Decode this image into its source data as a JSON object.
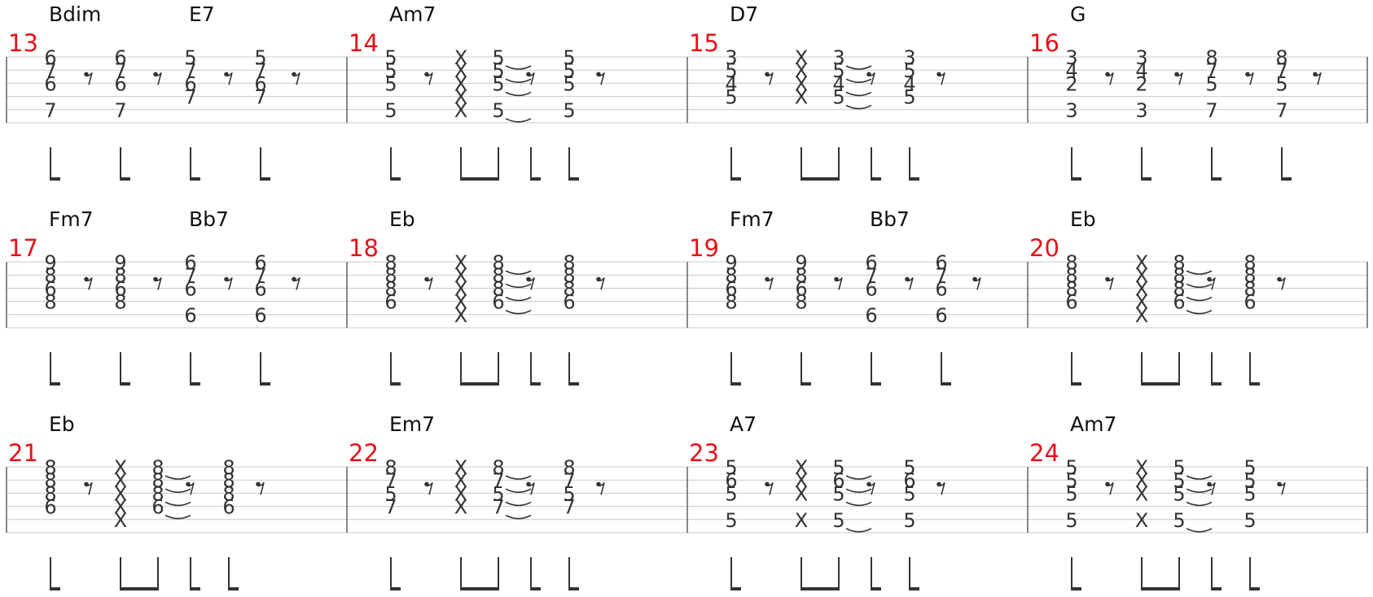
{
  "colors": {
    "measure_number": "#e8101a",
    "staff_line": "#c8c8c8",
    "ink": "#333333"
  },
  "systems": [
    {
      "measures": [
        {
          "number": "13",
          "chords": [
            {
              "name": "Bdim",
              "beat": 1
            },
            {
              "name": "E7",
              "beat": 5
            }
          ],
          "beats": [
            {
              "frets": [
                "6",
                "7",
                "6",
                "",
                "7",
                ""
              ]
            },
            {
              "rest": true
            },
            {
              "frets": [
                "6",
                "7",
                "6",
                "",
                "7",
                ""
              ]
            },
            {
              "rest": true
            },
            {
              "frets": [
                "5",
                "7",
                "6",
                "7",
                "",
                ""
              ]
            },
            {
              "rest": true
            },
            {
              "frets": [
                "5",
                "7",
                "6",
                "7",
                "",
                ""
              ]
            },
            {
              "rest": true
            }
          ]
        },
        {
          "number": "14",
          "chords": [
            {
              "name": "Am7",
              "beat": 1
            }
          ],
          "beats": [
            {
              "frets": [
                "5",
                "5",
                "5",
                "",
                "5",
                ""
              ]
            },
            {
              "rest": true
            },
            {
              "frets": [
                "X",
                "X",
                "X",
                "X",
                "X",
                ""
              ],
              "beam": true
            },
            {
              "frets": [
                "5",
                "5",
                "5",
                "",
                "5",
                ""
              ],
              "beam": true,
              "tie": true
            },
            {
              "ties": [
                0,
                1,
                2,
                4
              ]
            },
            {
              "rest": true
            },
            {
              "frets": [
                "5",
                "5",
                "5",
                "",
                "5",
                ""
              ]
            },
            {
              "rest": true
            }
          ]
        },
        {
          "number": "15",
          "chords": [
            {
              "name": "D7",
              "beat": 1
            }
          ],
          "beats": [
            {
              "frets": [
                "3",
                "5",
                "4",
                "5",
                "",
                ""
              ]
            },
            {
              "rest": true
            },
            {
              "frets": [
                "X",
                "X",
                "X",
                "X",
                "",
                ""
              ],
              "beam": true
            },
            {
              "frets": [
                "3",
                "5",
                "4",
                "5",
                "",
                ""
              ],
              "beam": true,
              "tie": true
            },
            {
              "ties": [
                0,
                1,
                2,
                3
              ]
            },
            {
              "rest": true
            },
            {
              "frets": [
                "3",
                "5",
                "4",
                "5",
                "",
                ""
              ]
            },
            {
              "rest": true
            }
          ]
        },
        {
          "number": "16",
          "chords": [
            {
              "name": "G",
              "beat": 1
            }
          ],
          "beats": [
            {
              "frets": [
                "3",
                "4",
                "2",
                "",
                "3",
                ""
              ]
            },
            {
              "rest": true
            },
            {
              "frets": [
                "3",
                "4",
                "2",
                "",
                "3",
                ""
              ]
            },
            {
              "rest": true
            },
            {
              "frets": [
                "8",
                "7",
                "5",
                "",
                "7",
                ""
              ]
            },
            {
              "rest": true
            },
            {
              "frets": [
                "8",
                "7",
                "5",
                "",
                "7",
                ""
              ]
            },
            {
              "rest": true
            }
          ]
        }
      ]
    },
    {
      "measures": [
        {
          "number": "17",
          "chords": [
            {
              "name": "Fm7",
              "beat": 1
            },
            {
              "name": "Bb7",
              "beat": 5
            }
          ],
          "beats": [
            {
              "frets": [
                "9",
                "8",
                "6",
                "8",
                "",
                ""
              ]
            },
            {
              "rest": true
            },
            {
              "frets": [
                "9",
                "8",
                "6",
                "8",
                "",
                ""
              ]
            },
            {
              "rest": true
            },
            {
              "frets": [
                "6",
                "7",
                "6",
                "",
                "6",
                ""
              ]
            },
            {
              "rest": true
            },
            {
              "frets": [
                "6",
                "7",
                "6",
                "",
                "6",
                ""
              ]
            },
            {
              "rest": true
            }
          ]
        },
        {
          "number": "18",
          "chords": [
            {
              "name": "Eb",
              "beat": 1
            }
          ],
          "beats": [
            {
              "frets": [
                "8",
                "8",
                "8",
                "6",
                "",
                ""
              ]
            },
            {
              "rest": true
            },
            {
              "frets": [
                "X",
                "X",
                "X",
                "X",
                "X",
                ""
              ],
              "beam": true
            },
            {
              "frets": [
                "8",
                "8",
                "8",
                "6",
                "",
                ""
              ],
              "beam": true,
              "tie": true
            },
            {
              "ties": [
                0,
                1,
                2,
                3
              ]
            },
            {
              "rest": true
            },
            {
              "frets": [
                "8",
                "8",
                "8",
                "6",
                "",
                ""
              ]
            },
            {
              "rest": true
            }
          ]
        },
        {
          "number": "19",
          "chords": [
            {
              "name": "Fm7",
              "beat": 1
            },
            {
              "name": "Bb7",
              "beat": 5
            }
          ],
          "beats": [
            {
              "frets": [
                "9",
                "8",
                "6",
                "8",
                "",
                ""
              ]
            },
            {
              "rest": true
            },
            {
              "frets": [
                "9",
                "8",
                "6",
                "8",
                "",
                ""
              ]
            },
            {
              "rest": true
            },
            {
              "frets": [
                "6",
                "7",
                "6",
                "",
                "6",
                ""
              ]
            },
            {
              "rest": true
            },
            {
              "frets": [
                "6",
                "7",
                "6",
                "",
                "6",
                ""
              ]
            },
            {
              "rest": true
            }
          ]
        },
        {
          "number": "20",
          "chords": [
            {
              "name": "Eb",
              "beat": 1
            }
          ],
          "beats": [
            {
              "frets": [
                "8",
                "8",
                "8",
                "6",
                "",
                ""
              ]
            },
            {
              "rest": true
            },
            {
              "frets": [
                "X",
                "X",
                "X",
                "X",
                "X",
                ""
              ],
              "beam": true
            },
            {
              "frets": [
                "8",
                "8",
                "8",
                "6",
                "",
                ""
              ],
              "beam": true,
              "tie": true
            },
            {
              "ties": [
                0,
                1,
                2,
                3
              ]
            },
            {
              "rest": true
            },
            {
              "frets": [
                "8",
                "8",
                "8",
                "6",
                "",
                ""
              ]
            },
            {
              "rest": true
            }
          ]
        }
      ]
    },
    {
      "measures": [
        {
          "number": "21",
          "chords": [
            {
              "name": "Eb",
              "beat": 1
            }
          ],
          "beats": [
            {
              "frets": [
                "8",
                "8",
                "8",
                "6",
                "",
                ""
              ]
            },
            {
              "rest": true
            },
            {
              "frets": [
                "X",
                "X",
                "X",
                "X",
                "X",
                ""
              ],
              "beam": true
            },
            {
              "frets": [
                "8",
                "8",
                "8",
                "6",
                "",
                ""
              ],
              "beam": true,
              "tie": true
            },
            {
              "ties": [
                0,
                1,
                2,
                3
              ]
            },
            {
              "rest": true
            },
            {
              "frets": [
                "8",
                "8",
                "8",
                "6",
                "",
                ""
              ]
            },
            {
              "rest": true
            }
          ]
        },
        {
          "number": "22",
          "chords": [
            {
              "name": "Em7",
              "beat": 1
            }
          ],
          "beats": [
            {
              "frets": [
                "8",
                "7",
                "5",
                "7",
                "",
                ""
              ]
            },
            {
              "rest": true
            },
            {
              "frets": [
                "X",
                "X",
                "X",
                "X",
                "",
                ""
              ],
              "beam": true
            },
            {
              "frets": [
                "8",
                "7",
                "5",
                "7",
                "",
                ""
              ],
              "beam": true,
              "tie": true
            },
            {
              "ties": [
                0,
                1,
                2,
                3
              ]
            },
            {
              "rest": true
            },
            {
              "frets": [
                "8",
                "7",
                "5",
                "7",
                "",
                ""
              ]
            },
            {
              "rest": true
            }
          ]
        },
        {
          "number": "23",
          "chords": [
            {
              "name": "A7",
              "beat": 1
            }
          ],
          "beats": [
            {
              "frets": [
                "5",
                "6",
                "5",
                "",
                "5",
                ""
              ]
            },
            {
              "rest": true
            },
            {
              "frets": [
                "X",
                "X",
                "X",
                "",
                "X",
                ""
              ],
              "beam": true
            },
            {
              "frets": [
                "5",
                "6",
                "5",
                "",
                "5",
                ""
              ],
              "beam": true,
              "tie": true
            },
            {
              "ties": [
                0,
                1,
                2,
                4
              ]
            },
            {
              "rest": true
            },
            {
              "frets": [
                "5",
                "6",
                "5",
                "",
                "5",
                ""
              ]
            },
            {
              "rest": true
            }
          ]
        },
        {
          "number": "24",
          "chords": [
            {
              "name": "Am7",
              "beat": 1
            }
          ],
          "beats": [
            {
              "frets": [
                "5",
                "5",
                "5",
                "",
                "5",
                ""
              ]
            },
            {
              "rest": true
            },
            {
              "frets": [
                "X",
                "X",
                "X",
                "",
                "X",
                ""
              ],
              "beam": true
            },
            {
              "frets": [
                "5",
                "5",
                "5",
                "",
                "5",
                ""
              ],
              "beam": true,
              "tie": true
            },
            {
              "ties": [
                0,
                1,
                2,
                4
              ]
            },
            {
              "rest": true
            },
            {
              "frets": [
                "5",
                "5",
                "5",
                "",
                "5",
                ""
              ]
            },
            {
              "rest": true
            }
          ]
        }
      ]
    }
  ]
}
